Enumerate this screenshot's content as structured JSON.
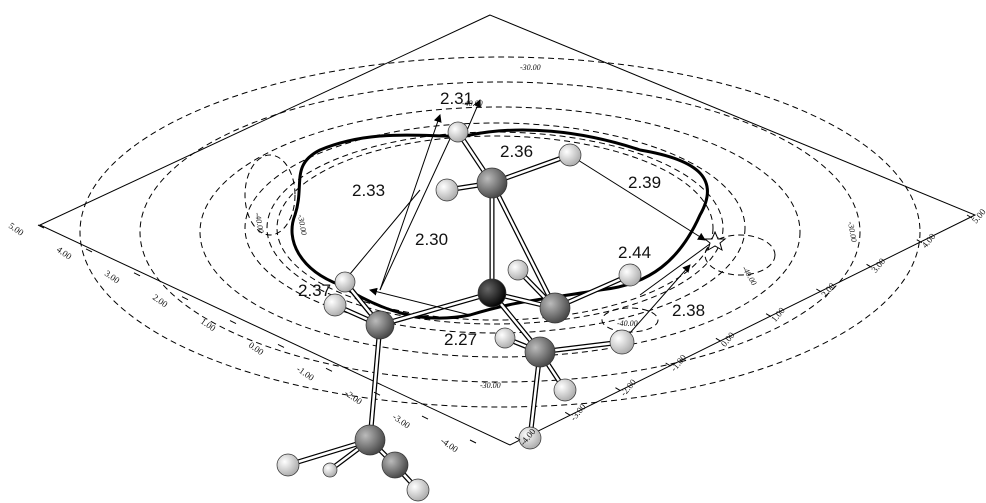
{
  "distance_labels": [
    "2.31",
    "2.36",
    "2.33",
    "2.39",
    "2.30",
    "2.44",
    "2.37",
    "2.38",
    "2.27"
  ],
  "contour_labels": [
    "-30.00",
    "-40.00",
    "-30.00",
    "-40.00",
    "-30.00",
    "-40.00",
    "-40.00",
    "-30.00"
  ],
  "left_axis_ticks": [
    "5.00",
    "4.00",
    "3.00",
    "2.00",
    "1.00",
    "0.00",
    "-1.00",
    "-2.00",
    "-3.00",
    "-4.00"
  ],
  "right_axis_ticks": [
    "-4.00",
    "-3.00",
    "-2.00",
    "-1.00",
    "0.00",
    "1.00",
    "2.00",
    "3.00",
    "4.00",
    "5.00"
  ]
}
